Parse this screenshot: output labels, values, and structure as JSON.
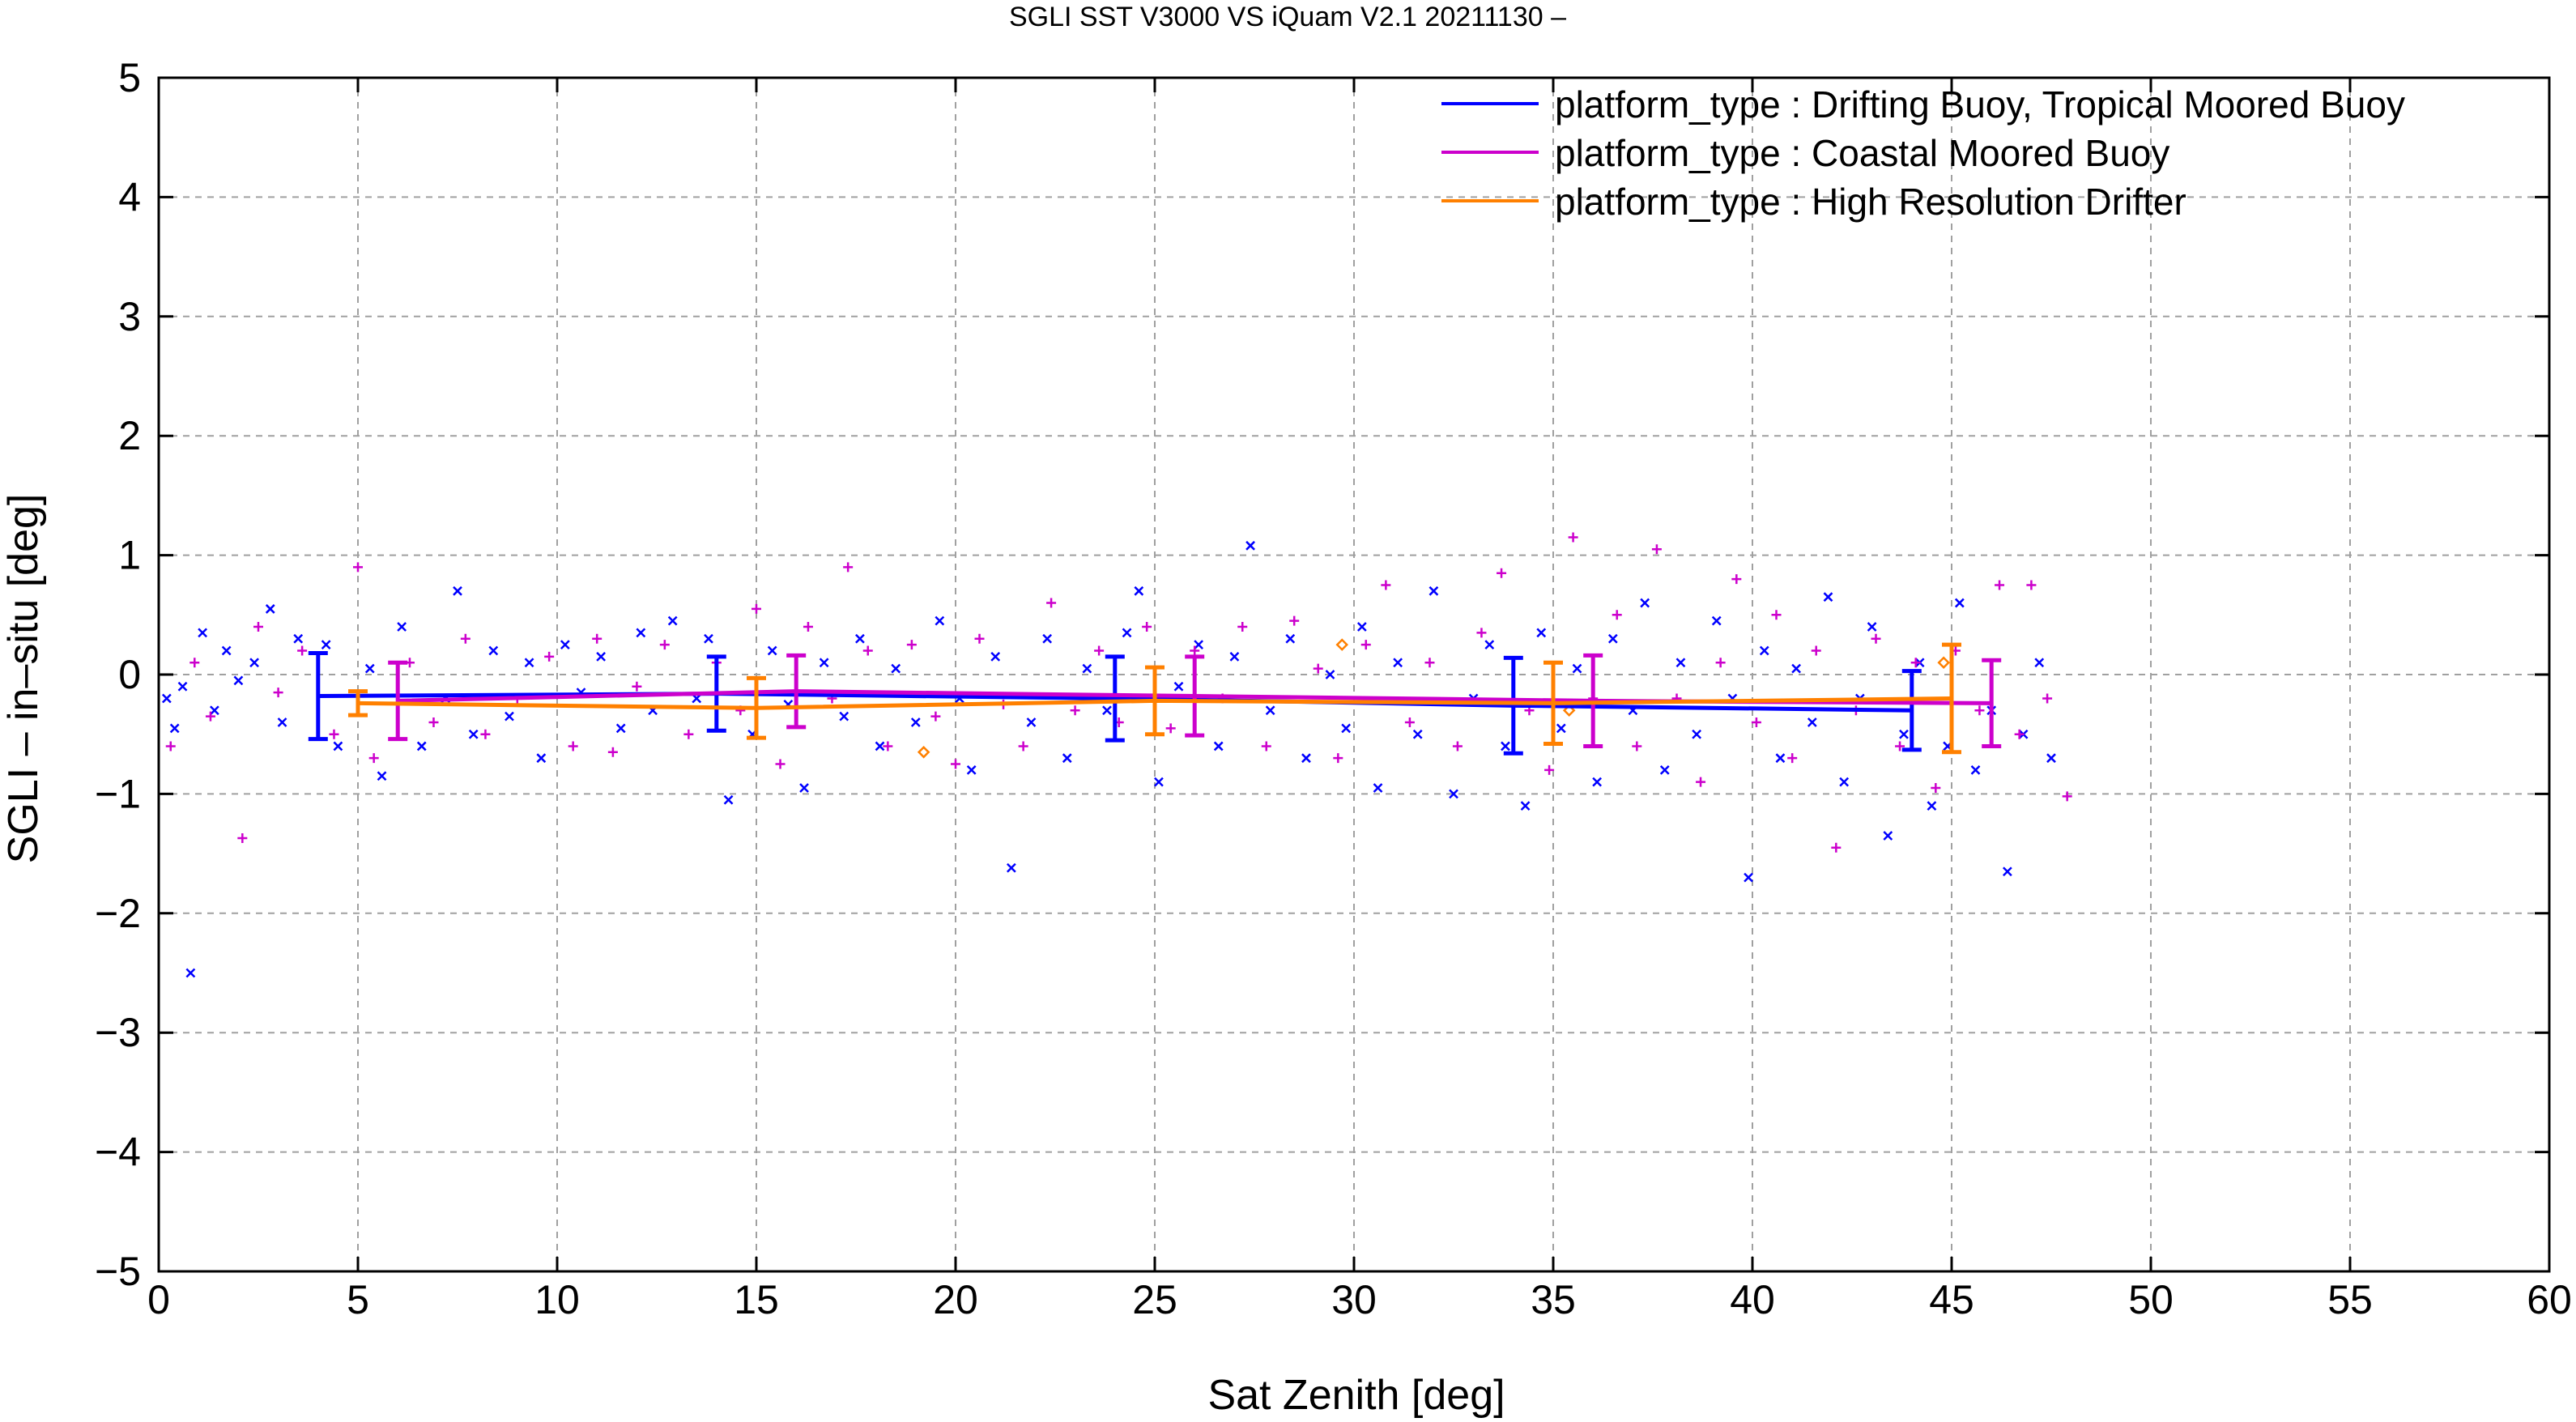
{
  "chart_data": {
    "type": "scatter",
    "title": "SGLI SST V3000 VS iQuam V2.1 20211130 –",
    "xlabel": "Sat Zenith [deg]",
    "ylabel": "SGLI – in–situ [deg]",
    "xlim": [
      0,
      60
    ],
    "ylim": [
      -5,
      5
    ],
    "x_ticks": [
      0,
      5,
      10,
      15,
      20,
      25,
      30,
      35,
      40,
      45,
      50,
      55,
      60
    ],
    "y_ticks": [
      5,
      4,
      3,
      2,
      1,
      0,
      -1,
      -2,
      -3,
      -4,
      -5
    ],
    "y_tick_labels": [
      "5",
      "4",
      "3",
      "2",
      "1",
      "0",
      "−1",
      "−2",
      "−3",
      "−4",
      "−5"
    ],
    "grid": true,
    "legend_position": "top-right",
    "series": [
      {
        "name": "platform_type : Drifting Buoy, Tropical Moored Buoy",
        "color": "#0000ff",
        "marker": "x",
        "mean_line": {
          "x": [
            4,
            14,
            24,
            34,
            44
          ],
          "y": [
            -0.18,
            -0.16,
            -0.2,
            -0.26,
            -0.3
          ],
          "err": [
            0.36,
            0.31,
            0.35,
            0.4,
            0.33
          ]
        },
        "points": [
          [
            0.2,
            -0.2
          ],
          [
            0.4,
            -0.45
          ],
          [
            0.6,
            -0.1
          ],
          [
            0.8,
            -2.5
          ],
          [
            1.1,
            0.35
          ],
          [
            1.4,
            -0.3
          ],
          [
            1.7,
            0.2
          ],
          [
            2.0,
            -0.05
          ],
          [
            2.4,
            0.1
          ],
          [
            2.8,
            0.55
          ],
          [
            3.1,
            -0.4
          ],
          [
            3.5,
            0.3
          ],
          [
            4.2,
            0.25
          ],
          [
            4.5,
            -0.6
          ],
          [
            5.3,
            0.05
          ],
          [
            5.6,
            -0.85
          ],
          [
            6.1,
            0.4
          ],
          [
            6.6,
            -0.6
          ],
          [
            7.2,
            -0.2
          ],
          [
            7.5,
            0.7
          ],
          [
            7.9,
            -0.5
          ],
          [
            8.4,
            0.2
          ],
          [
            8.8,
            -0.35
          ],
          [
            9.3,
            0.1
          ],
          [
            9.6,
            -0.7
          ],
          [
            10.2,
            0.25
          ],
          [
            10.6,
            -0.15
          ],
          [
            11.1,
            0.15
          ],
          [
            11.6,
            -0.45
          ],
          [
            12.1,
            0.35
          ],
          [
            12.4,
            -0.3
          ],
          [
            12.9,
            0.45
          ],
          [
            13.5,
            -0.2
          ],
          [
            13.8,
            0.3
          ],
          [
            14.3,
            -1.05
          ],
          [
            14.9,
            -0.5
          ],
          [
            15.4,
            0.2
          ],
          [
            15.8,
            -0.25
          ],
          [
            16.2,
            -0.95
          ],
          [
            16.7,
            0.1
          ],
          [
            17.2,
            -0.35
          ],
          [
            17.6,
            0.3
          ],
          [
            18.1,
            -0.6
          ],
          [
            18.5,
            0.05
          ],
          [
            19.0,
            -0.4
          ],
          [
            19.6,
            0.45
          ],
          [
            20.1,
            -0.2
          ],
          [
            20.4,
            -0.8
          ],
          [
            21.0,
            0.15
          ],
          [
            21.4,
            -1.62
          ],
          [
            21.9,
            -0.4
          ],
          [
            22.3,
            0.3
          ],
          [
            22.8,
            -0.7
          ],
          [
            23.3,
            0.05
          ],
          [
            23.8,
            -0.3
          ],
          [
            24.3,
            0.35
          ],
          [
            24.6,
            0.7
          ],
          [
            25.1,
            -0.9
          ],
          [
            25.6,
            -0.1
          ],
          [
            26.1,
            0.25
          ],
          [
            26.6,
            -0.6
          ],
          [
            27.0,
            0.15
          ],
          [
            27.4,
            1.08
          ],
          [
            27.9,
            -0.3
          ],
          [
            28.4,
            0.3
          ],
          [
            28.8,
            -0.7
          ],
          [
            29.4,
            0.0
          ],
          [
            29.8,
            -0.45
          ],
          [
            30.2,
            0.4
          ],
          [
            30.6,
            -0.95
          ],
          [
            31.1,
            0.1
          ],
          [
            31.6,
            -0.5
          ],
          [
            32.0,
            0.7
          ],
          [
            32.5,
            -1.0
          ],
          [
            33.0,
            -0.2
          ],
          [
            33.4,
            0.25
          ],
          [
            33.8,
            -0.6
          ],
          [
            34.3,
            -1.1
          ],
          [
            34.7,
            0.35
          ],
          [
            35.2,
            -0.45
          ],
          [
            35.6,
            0.05
          ],
          [
            36.1,
            -0.9
          ],
          [
            36.5,
            0.3
          ],
          [
            37.0,
            -0.3
          ],
          [
            37.3,
            0.6
          ],
          [
            37.8,
            -0.8
          ],
          [
            38.2,
            0.1
          ],
          [
            38.6,
            -0.5
          ],
          [
            39.1,
            0.45
          ],
          [
            39.5,
            -0.2
          ],
          [
            39.9,
            -1.7
          ],
          [
            40.3,
            0.2
          ],
          [
            40.7,
            -0.7
          ],
          [
            41.1,
            0.05
          ],
          [
            41.5,
            -0.4
          ],
          [
            41.9,
            0.65
          ],
          [
            42.3,
            -0.9
          ],
          [
            42.7,
            -0.2
          ],
          [
            43.0,
            0.4
          ],
          [
            43.4,
            -1.35
          ],
          [
            43.8,
            -0.5
          ],
          [
            44.2,
            0.1
          ],
          [
            44.5,
            -1.1
          ],
          [
            44.9,
            -0.6
          ],
          [
            45.2,
            0.6
          ],
          [
            45.6,
            -0.8
          ],
          [
            46.0,
            -0.3
          ],
          [
            46.4,
            -1.65
          ],
          [
            46.8,
            -0.5
          ],
          [
            47.2,
            0.1
          ],
          [
            47.5,
            -0.7
          ]
        ]
      },
      {
        "name": "platform_type : Coastal Moored Buoy",
        "color": "#cc00cc",
        "marker": "+",
        "mean_line": {
          "x": [
            6,
            16,
            26,
            36,
            46
          ],
          "y": [
            -0.22,
            -0.14,
            -0.18,
            -0.22,
            -0.24
          ],
          "err": [
            0.32,
            0.3,
            0.33,
            0.38,
            0.36
          ]
        },
        "points": [
          [
            0.3,
            -0.6
          ],
          [
            0.9,
            0.1
          ],
          [
            1.3,
            -0.35
          ],
          [
            2.1,
            -1.37
          ],
          [
            2.5,
            0.4
          ],
          [
            3.0,
            -0.15
          ],
          [
            3.6,
            0.2
          ],
          [
            4.4,
            -0.5
          ],
          [
            5.0,
            0.9
          ],
          [
            5.4,
            -0.7
          ],
          [
            6.3,
            0.1
          ],
          [
            6.9,
            -0.4
          ],
          [
            7.7,
            0.3
          ],
          [
            8.2,
            -0.5
          ],
          [
            9.0,
            -0.2
          ],
          [
            9.8,
            0.15
          ],
          [
            10.4,
            -0.6
          ],
          [
            11.0,
            0.3
          ],
          [
            11.4,
            -0.65
          ],
          [
            12.0,
            -0.1
          ],
          [
            12.7,
            0.25
          ],
          [
            13.3,
            -0.5
          ],
          [
            14.0,
            0.1
          ],
          [
            14.6,
            -0.3
          ],
          [
            15.0,
            0.55
          ],
          [
            15.6,
            -0.75
          ],
          [
            16.3,
            0.4
          ],
          [
            16.9,
            -0.2
          ],
          [
            17.3,
            0.9
          ],
          [
            17.8,
            0.2
          ],
          [
            18.3,
            -0.6
          ],
          [
            18.9,
            0.25
          ],
          [
            19.5,
            -0.35
          ],
          [
            20.0,
            -0.75
          ],
          [
            20.6,
            0.3
          ],
          [
            21.2,
            -0.25
          ],
          [
            21.7,
            -0.6
          ],
          [
            22.4,
            0.6
          ],
          [
            23.0,
            -0.3
          ],
          [
            23.6,
            0.2
          ],
          [
            24.1,
            -0.4
          ],
          [
            24.8,
            0.4
          ],
          [
            25.4,
            -0.45
          ],
          [
            26.0,
            0.2
          ],
          [
            26.7,
            -0.2
          ],
          [
            27.2,
            0.4
          ],
          [
            27.8,
            -0.6
          ],
          [
            28.5,
            0.45
          ],
          [
            29.1,
            0.05
          ],
          [
            29.6,
            -0.7
          ],
          [
            30.3,
            0.25
          ],
          [
            30.8,
            0.75
          ],
          [
            31.4,
            -0.4
          ],
          [
            31.9,
            0.1
          ],
          [
            32.6,
            -0.6
          ],
          [
            33.2,
            0.35
          ],
          [
            33.7,
            0.85
          ],
          [
            34.4,
            -0.3
          ],
          [
            34.9,
            -0.8
          ],
          [
            35.5,
            1.15
          ],
          [
            36.0,
            -0.2
          ],
          [
            36.6,
            0.5
          ],
          [
            37.1,
            -0.6
          ],
          [
            37.6,
            1.05
          ],
          [
            38.1,
            -0.2
          ],
          [
            38.7,
            -0.9
          ],
          [
            39.2,
            0.1
          ],
          [
            39.6,
            0.8
          ],
          [
            40.1,
            -0.4
          ],
          [
            40.6,
            0.5
          ],
          [
            41.0,
            -0.7
          ],
          [
            41.6,
            0.2
          ],
          [
            42.1,
            -1.45
          ],
          [
            42.6,
            -0.3
          ],
          [
            43.1,
            0.3
          ],
          [
            43.7,
            -0.6
          ],
          [
            44.1,
            0.1
          ],
          [
            44.6,
            -0.95
          ],
          [
            45.1,
            0.2
          ],
          [
            45.7,
            -0.3
          ],
          [
            46.2,
            0.75
          ],
          [
            46.7,
            -0.5
          ],
          [
            47.0,
            0.75
          ],
          [
            47.4,
            -0.2
          ],
          [
            47.9,
            -1.02
          ]
        ]
      },
      {
        "name": "platform_type : High Resolution Drifter",
        "color": "#ff8000",
        "marker": "o",
        "mean_line": {
          "x": [
            5,
            15,
            25,
            35,
            45
          ],
          "y": [
            -0.24,
            -0.28,
            -0.22,
            -0.24,
            -0.2
          ],
          "err": [
            0.1,
            0.25,
            0.28,
            0.34,
            0.45
          ]
        },
        "points": [
          [
            19.2,
            -0.65
          ],
          [
            29.7,
            0.25
          ],
          [
            35.4,
            -0.3
          ],
          [
            44.8,
            0.1
          ]
        ]
      }
    ]
  }
}
